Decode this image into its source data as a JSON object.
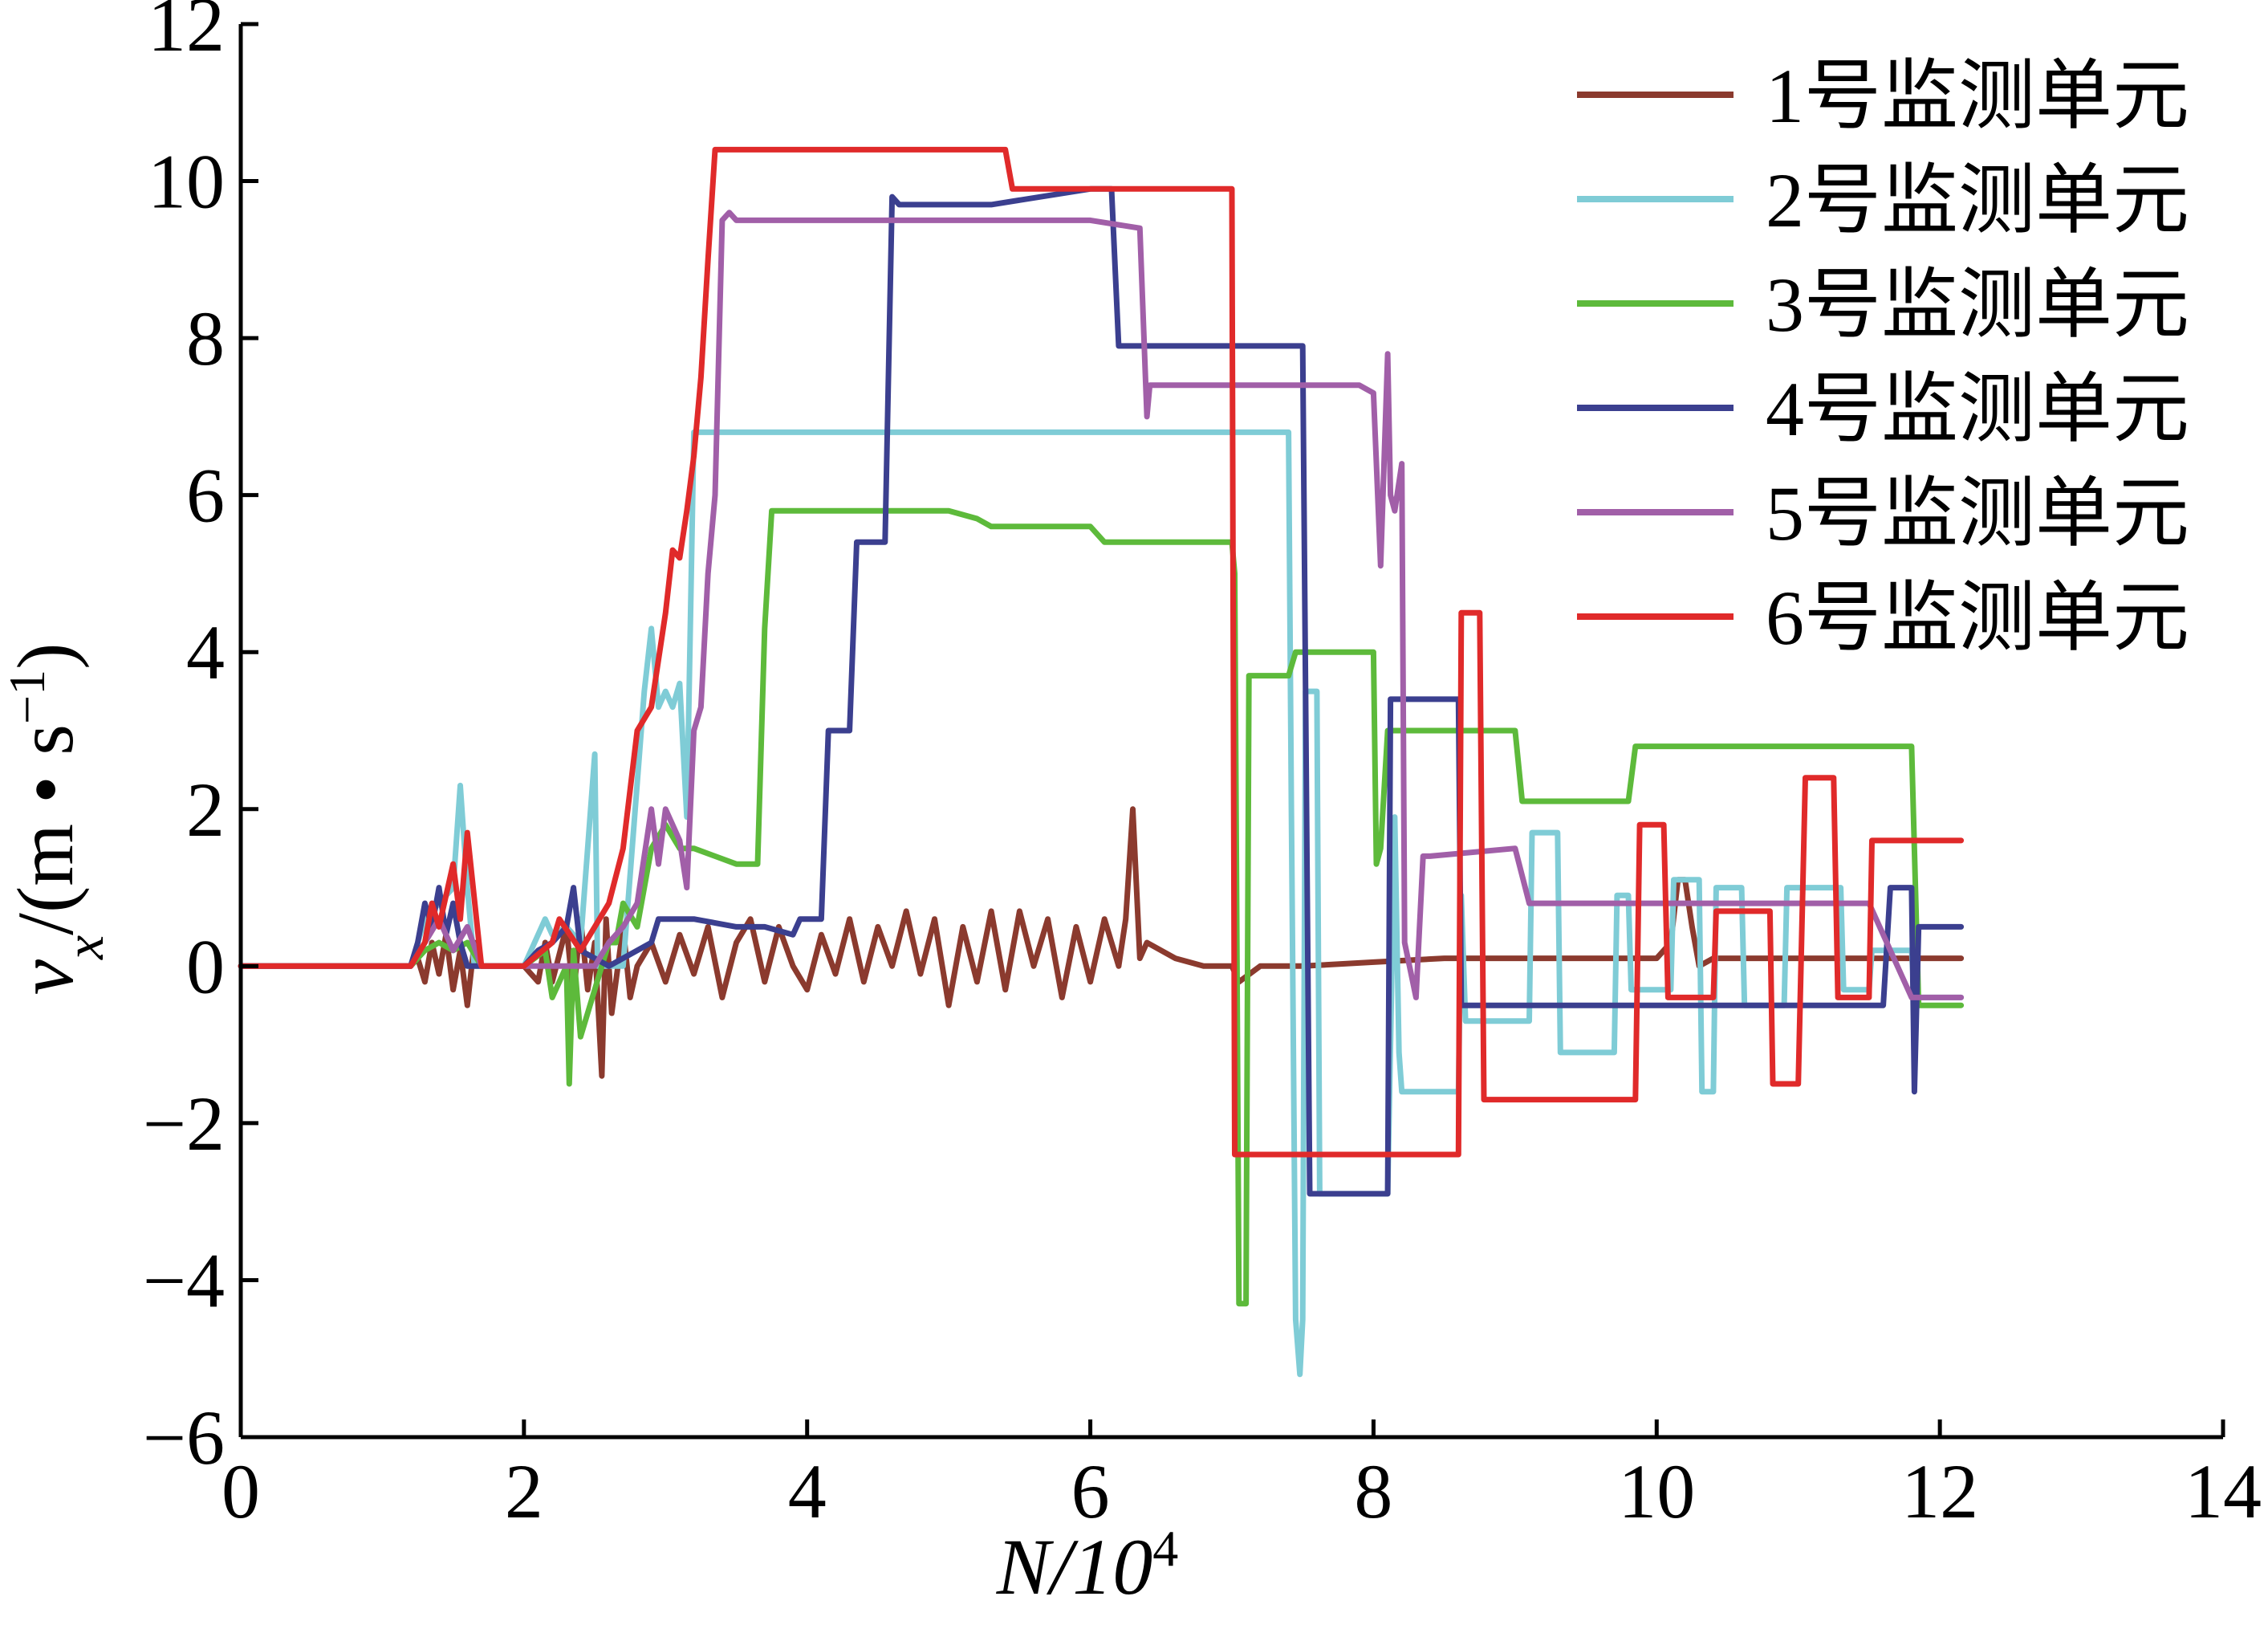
{
  "chart_data": {
    "type": "line",
    "title": "",
    "xlabel": "N/10",
    "xlabel_sup": "4",
    "ylabel": "v",
    "ylabel_sub": "x",
    "ylabel_unit": "/(m • s",
    "ylabel_unit_sup": "−1",
    "ylabel_close": ")",
    "xlim": [
      0,
      14
    ],
    "ylim": [
      -6,
      12
    ],
    "xticks": [
      0,
      2,
      4,
      6,
      8,
      10,
      12,
      14
    ],
    "xtick_labels": [
      "0",
      "2",
      "4",
      "6",
      "8",
      "10",
      "12",
      "14"
    ],
    "yticks": [
      -6,
      -4,
      -2,
      0,
      2,
      4,
      6,
      8,
      10,
      12
    ],
    "ytick_labels": [
      "−6",
      "−4",
      "−2",
      "0",
      "2",
      "4",
      "6",
      "8",
      "10",
      "12"
    ],
    "grid": false,
    "legend_position": "top-right",
    "series": [
      {
        "name": "1号监测单元",
        "color": "#8b3a2e",
        "x": [
          0,
          1.2,
          1.25,
          1.3,
          1.35,
          1.4,
          1.45,
          1.5,
          1.55,
          1.6,
          1.65,
          1.7,
          1.8,
          2.0,
          2.1,
          2.15,
          2.2,
          2.3,
          2.35,
          2.4,
          2.45,
          2.5,
          2.55,
          2.58,
          2.62,
          2.7,
          2.75,
          2.8,
          2.9,
          3.0,
          3.1,
          3.2,
          3.3,
          3.4,
          3.5,
          3.6,
          3.7,
          3.8,
          3.9,
          4.0,
          4.1,
          4.2,
          4.3,
          4.4,
          4.5,
          4.6,
          4.7,
          4.8,
          4.9,
          5.0,
          5.1,
          5.2,
          5.3,
          5.4,
          5.5,
          5.6,
          5.7,
          5.8,
          5.9,
          6.0,
          6.1,
          6.2,
          6.25,
          6.3,
          6.35,
          6.4,
          6.6,
          6.8,
          7.0,
          7.05,
          7.2,
          7.5,
          8.0,
          8.5,
          9.0,
          9.5,
          10.0,
          10.1,
          10.15,
          10.2,
          10.25,
          10.3,
          10.4,
          10.6,
          11.0,
          11.5,
          12.0,
          12.15
        ],
        "values": [
          0,
          0,
          0.1,
          -0.2,
          0.3,
          -0.1,
          0.4,
          -0.3,
          0.2,
          -0.5,
          0.3,
          0,
          0,
          0,
          -0.2,
          0.3,
          -0.2,
          0.5,
          -0.4,
          0.6,
          -0.3,
          0.3,
          -1.4,
          0.6,
          -0.6,
          0.5,
          -0.4,
          0,
          0.3,
          -0.2,
          0.4,
          -0.1,
          0.5,
          -0.4,
          0.3,
          0.6,
          -0.2,
          0.5,
          0,
          -0.3,
          0.4,
          -0.1,
          0.6,
          -0.2,
          0.5,
          0,
          0.7,
          -0.1,
          0.6,
          -0.5,
          0.5,
          -0.2,
          0.7,
          -0.3,
          0.7,
          0,
          0.6,
          -0.4,
          0.5,
          -0.2,
          0.6,
          0,
          0.6,
          2.0,
          0.1,
          0.3,
          0.1,
          0,
          0,
          -0.2,
          0,
          0,
          0.05,
          0.1,
          0.1,
          0.1,
          0.1,
          0.3,
          1.1,
          1.1,
          0.5,
          0,
          0.1,
          0.1,
          0.1,
          0.1,
          0.1,
          0.1
        ]
      },
      {
        "name": "2号监测单元",
        "color": "#7fccd6",
        "x": [
          0,
          1.2,
          1.3,
          1.4,
          1.5,
          1.55,
          1.6,
          1.65,
          1.7,
          2.0,
          2.15,
          2.2,
          2.3,
          2.4,
          2.5,
          2.52,
          2.55,
          2.7,
          2.85,
          2.9,
          2.95,
          3.0,
          3.05,
          3.1,
          3.15,
          3.2,
          3.22,
          3.3,
          5.0,
          7.4,
          7.42,
          7.45,
          7.48,
          7.5,
          7.52,
          7.6,
          7.62,
          7.8,
          8.1,
          8.15,
          8.18,
          8.2,
          8.25,
          8.3,
          8.5,
          8.6,
          8.62,
          8.65,
          9.0,
          9.1,
          9.12,
          9.3,
          9.32,
          9.5,
          9.52,
          9.7,
          9.72,
          9.8,
          9.82,
          10.1,
          10.12,
          10.3,
          10.32,
          10.4,
          10.42,
          10.6,
          10.62,
          10.9,
          10.92,
          11.3,
          11.32,
          11.5,
          11.52,
          11.8,
          11.82,
          12.15
        ],
        "values": [
          0,
          0,
          0.6,
          0.8,
          1.0,
          2.3,
          1.0,
          0,
          0,
          0,
          0.6,
          0.4,
          0.5,
          0.3,
          2.7,
          0,
          0,
          0,
          3.5,
          4.3,
          3.3,
          3.5,
          3.3,
          3.6,
          1.9,
          6.8,
          6.8,
          6.8,
          6.8,
          6.8,
          2.0,
          -4.5,
          -5.2,
          -4.5,
          3.5,
          3.5,
          -2.9,
          -2.9,
          -2.9,
          1.9,
          -1.1,
          -1.6,
          -1.6,
          -1.6,
          -1.6,
          -1.6,
          0.9,
          -0.7,
          -0.7,
          -0.7,
          1.7,
          1.7,
          -1.1,
          -1.1,
          -1.1,
          -1.1,
          0.9,
          0.9,
          -0.3,
          -0.3,
          1.1,
          1.1,
          -1.6,
          -1.6,
          1.0,
          1.0,
          -0.5,
          -0.5,
          1.0,
          1.0,
          -0.3,
          -0.3,
          0.2,
          0.2,
          -0.4,
          -0.4
        ]
      },
      {
        "name": "3号监测单元",
        "color": "#5dba3b",
        "x": [
          0,
          1.2,
          1.3,
          1.4,
          1.5,
          1.6,
          1.7,
          2.0,
          2.15,
          2.2,
          2.3,
          2.32,
          2.35,
          2.4,
          2.6,
          2.65,
          2.7,
          2.8,
          2.9,
          3.0,
          3.1,
          3.2,
          3.5,
          3.65,
          3.7,
          3.75,
          3.8,
          5.0,
          5.2,
          5.3,
          6.0,
          6.1,
          7.0,
          7.02,
          7.05,
          7.1,
          7.12,
          7.4,
          7.45,
          7.5,
          8.0,
          8.02,
          8.05,
          8.1,
          8.15,
          8.18,
          9.0,
          9.05,
          9.8,
          9.85,
          11.8,
          11.85,
          12.15
        ],
        "values": [
          0,
          0,
          0.2,
          0.3,
          0.2,
          0.3,
          0,
          0,
          0.2,
          -0.4,
          0,
          -1.5,
          0.2,
          -0.9,
          0.3,
          0.3,
          0.8,
          0.5,
          1.5,
          1.8,
          1.5,
          1.5,
          1.3,
          1.3,
          4.3,
          5.8,
          5.8,
          5.8,
          5.7,
          5.6,
          5.6,
          5.4,
          5.4,
          5.0,
          -4.3,
          -4.3,
          3.7,
          3.7,
          4.0,
          4.0,
          4.0,
          1.3,
          1.5,
          3.0,
          3.0,
          3.0,
          3.0,
          2.1,
          2.1,
          2.8,
          2.8,
          -0.5,
          -0.5
        ]
      },
      {
        "name": "4号监测单元",
        "color": "#3b3f8f",
        "x": [
          0,
          1.2,
          1.25,
          1.3,
          1.35,
          1.4,
          1.45,
          1.5,
          1.55,
          1.6,
          2.0,
          2.1,
          2.2,
          2.3,
          2.35,
          2.4,
          2.6,
          2.8,
          2.9,
          2.95,
          3.2,
          3.5,
          3.7,
          3.9,
          3.95,
          4.1,
          4.15,
          4.3,
          4.35,
          4.55,
          4.6,
          4.65,
          5.3,
          6.0,
          6.15,
          6.2,
          7.5,
          7.55,
          7.6,
          7.65,
          8.1,
          8.12,
          8.15,
          8.6,
          8.62,
          9.0,
          9.5,
          10.0,
          11.5,
          11.6,
          11.65,
          11.8,
          11.82,
          11.85,
          12.15
        ],
        "values": [
          0,
          0,
          0.3,
          0.8,
          0.5,
          1.0,
          0.4,
          0.8,
          0.3,
          0,
          0,
          0.2,
          0.3,
          0.5,
          1.0,
          0.2,
          0,
          0.2,
          0.3,
          0.6,
          0.6,
          0.5,
          0.5,
          0.4,
          0.6,
          0.6,
          3.0,
          3.0,
          5.4,
          5.4,
          9.8,
          9.7,
          9.7,
          9.9,
          9.9,
          7.9,
          7.9,
          -2.9,
          -2.9,
          -2.9,
          -2.9,
          3.4,
          3.4,
          3.4,
          -0.5,
          -0.5,
          -0.5,
          -0.5,
          -0.5,
          -0.5,
          1.0,
          1.0,
          -1.6,
          0.5,
          0.5
        ]
      },
      {
        "name": "5号监测单元",
        "color": "#a15fa8",
        "x": [
          0,
          1.2,
          1.3,
          1.4,
          1.5,
          1.6,
          1.7,
          2.0,
          2.5,
          2.6,
          2.7,
          2.8,
          2.9,
          2.95,
          3.0,
          3.1,
          3.15,
          3.2,
          3.25,
          3.3,
          3.35,
          3.4,
          3.45,
          3.5,
          4.0,
          5.0,
          5.5,
          6.0,
          6.35,
          6.4,
          6.42,
          6.45,
          7.0,
          7.5,
          7.9,
          8.0,
          8.05,
          8.1,
          8.12,
          8.15,
          8.2,
          8.22,
          8.3,
          8.35,
          8.4,
          9.0,
          9.1,
          10.0,
          11.0,
          11.5,
          11.8,
          12.15
        ],
        "values": [
          0,
          0,
          0.3,
          0.6,
          0.2,
          0.5,
          0,
          0,
          0,
          0.3,
          0.5,
          0.8,
          2.0,
          1.3,
          2.0,
          1.6,
          1.0,
          3.0,
          3.3,
          5.0,
          6.0,
          9.5,
          9.6,
          9.5,
          9.5,
          9.5,
          9.5,
          9.5,
          9.4,
          7.0,
          7.4,
          7.4,
          7.4,
          7.4,
          7.4,
          7.3,
          5.1,
          7.8,
          6.0,
          5.8,
          6.4,
          0.3,
          -0.4,
          1.4,
          1.4,
          1.5,
          0.8,
          0.8,
          0.8,
          0.8,
          -0.4,
          -0.4
        ]
      },
      {
        "name": "6号监测单元",
        "color": "#e02a2a",
        "x": [
          0,
          1.2,
          1.3,
          1.35,
          1.4,
          1.5,
          1.55,
          1.6,
          1.7,
          2.0,
          2.2,
          2.25,
          2.4,
          2.5,
          2.6,
          2.7,
          2.8,
          2.9,
          3.0,
          3.05,
          3.1,
          3.15,
          3.2,
          3.25,
          3.3,
          3.35,
          3.4,
          3.5,
          5.4,
          5.45,
          5.5,
          6.0,
          7.0,
          7.02,
          7.05,
          8.0,
          8.5,
          8.6,
          8.62,
          8.75,
          8.78,
          9.85,
          9.88,
          10.05,
          10.08,
          10.4,
          10.42,
          10.8,
          10.82,
          11.0,
          11.05,
          11.25,
          11.28,
          11.5,
          11.52,
          11.8,
          11.85,
          12.15
        ],
        "values": [
          0,
          0,
          0.3,
          0.8,
          0.5,
          1.3,
          0.6,
          1.7,
          0,
          0,
          0.3,
          0.6,
          0.2,
          0.5,
          0.8,
          1.5,
          3.0,
          3.3,
          4.5,
          5.3,
          5.2,
          5.8,
          6.5,
          7.5,
          9.0,
          10.4,
          10.4,
          10.4,
          10.4,
          9.9,
          9.9,
          9.9,
          9.9,
          -2.4,
          -2.4,
          -2.4,
          -2.4,
          -2.4,
          4.5,
          4.5,
          -1.7,
          -1.7,
          1.8,
          1.8,
          -0.4,
          -0.4,
          0.7,
          0.7,
          -1.5,
          -1.5,
          2.4,
          2.4,
          -0.4,
          -0.4,
          1.6,
          1.6,
          1.6,
          1.6
        ]
      }
    ]
  }
}
